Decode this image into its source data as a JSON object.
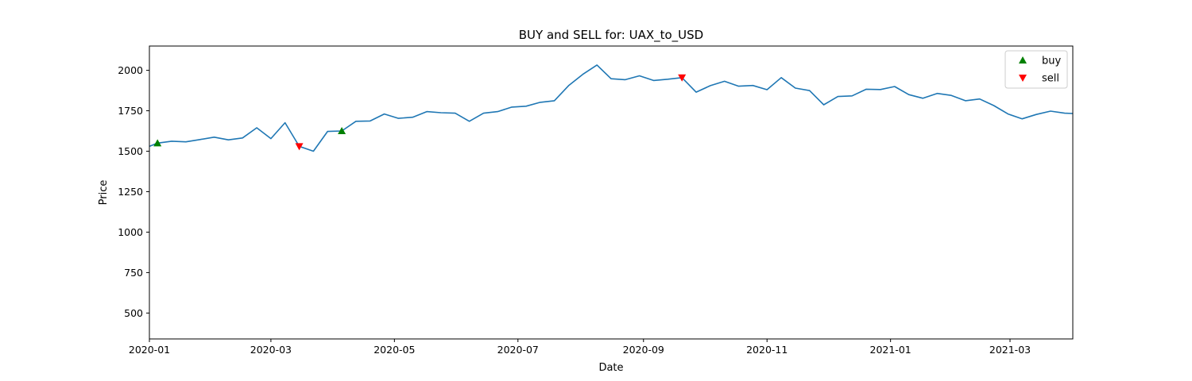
{
  "chart_data": {
    "type": "line",
    "title": "BUY and SELL for: UAX_to_USD",
    "xlabel": "Date",
    "ylabel": "Price",
    "xlim": [
      "2020-01-01",
      "2021-04-01"
    ],
    "ylim": [
      340,
      2150
    ],
    "x_ticks": [
      "2020-01",
      "2020-03",
      "2020-05",
      "2020-07",
      "2020-09",
      "2020-11",
      "2021-01",
      "2021-03"
    ],
    "y_ticks": [
      500,
      750,
      1000,
      1250,
      1500,
      1750,
      2000
    ],
    "grid": false,
    "legend_position": "top-right",
    "series": [
      {
        "color": "#1f77b4",
        "points": [
          [
            "2020-01-01",
            1530
          ],
          [
            "2020-01-05",
            1550
          ],
          [
            "2020-01-12",
            1562
          ],
          [
            "2020-01-19",
            1558
          ],
          [
            "2020-01-26",
            1572
          ],
          [
            "2020-02-02",
            1587
          ],
          [
            "2020-02-09",
            1570
          ],
          [
            "2020-02-16",
            1582
          ],
          [
            "2020-02-23",
            1645
          ],
          [
            "2020-03-01",
            1578
          ],
          [
            "2020-03-08",
            1676
          ],
          [
            "2020-03-15",
            1530
          ],
          [
            "2020-03-22",
            1500
          ],
          [
            "2020-03-29",
            1622
          ],
          [
            "2020-04-05",
            1625
          ],
          [
            "2020-04-12",
            1685
          ],
          [
            "2020-04-19",
            1687
          ],
          [
            "2020-04-26",
            1730
          ],
          [
            "2020-05-03",
            1703
          ],
          [
            "2020-05-10",
            1710
          ],
          [
            "2020-05-17",
            1745
          ],
          [
            "2020-05-24",
            1738
          ],
          [
            "2020-05-31",
            1735
          ],
          [
            "2020-06-07",
            1685
          ],
          [
            "2020-06-14",
            1735
          ],
          [
            "2020-06-21",
            1745
          ],
          [
            "2020-06-28",
            1773
          ],
          [
            "2020-07-05",
            1778
          ],
          [
            "2020-07-12",
            1802
          ],
          [
            "2020-07-19",
            1812
          ],
          [
            "2020-07-26",
            1905
          ],
          [
            "2020-08-02",
            1975
          ],
          [
            "2020-08-09",
            2033
          ],
          [
            "2020-08-16",
            1948
          ],
          [
            "2020-08-23",
            1942
          ],
          [
            "2020-08-30",
            1966
          ],
          [
            "2020-09-06",
            1937
          ],
          [
            "2020-09-13",
            1945
          ],
          [
            "2020-09-20",
            1955
          ],
          [
            "2020-09-27",
            1865
          ],
          [
            "2020-10-04",
            1905
          ],
          [
            "2020-10-11",
            1932
          ],
          [
            "2020-10-18",
            1902
          ],
          [
            "2020-10-25",
            1906
          ],
          [
            "2020-11-01",
            1880
          ],
          [
            "2020-11-08",
            1955
          ],
          [
            "2020-11-15",
            1890
          ],
          [
            "2020-11-22",
            1875
          ],
          [
            "2020-11-29",
            1787
          ],
          [
            "2020-12-06",
            1838
          ],
          [
            "2020-12-13",
            1842
          ],
          [
            "2020-12-20",
            1883
          ],
          [
            "2020-12-27",
            1881
          ],
          [
            "2021-01-03",
            1900
          ],
          [
            "2021-01-10",
            1850
          ],
          [
            "2021-01-17",
            1827
          ],
          [
            "2021-01-24",
            1857
          ],
          [
            "2021-01-31",
            1845
          ],
          [
            "2021-02-07",
            1812
          ],
          [
            "2021-02-14",
            1823
          ],
          [
            "2021-02-21",
            1782
          ],
          [
            "2021-02-28",
            1730
          ],
          [
            "2021-03-07",
            1700
          ],
          [
            "2021-03-14",
            1727
          ],
          [
            "2021-03-21",
            1748
          ],
          [
            "2021-03-28",
            1735
          ],
          [
            "2021-04-01",
            1733
          ]
        ]
      },
      {
        "name": "buy",
        "color": "#008000",
        "marker": "triangle-up",
        "points": [
          [
            "2020-01-05",
            1550
          ],
          [
            "2020-04-05",
            1625
          ]
        ]
      },
      {
        "name": "sell",
        "color": "#ff0000",
        "marker": "triangle-down",
        "points": [
          [
            "2020-03-15",
            1530
          ],
          [
            "2020-09-20",
            1955
          ]
        ]
      }
    ]
  }
}
